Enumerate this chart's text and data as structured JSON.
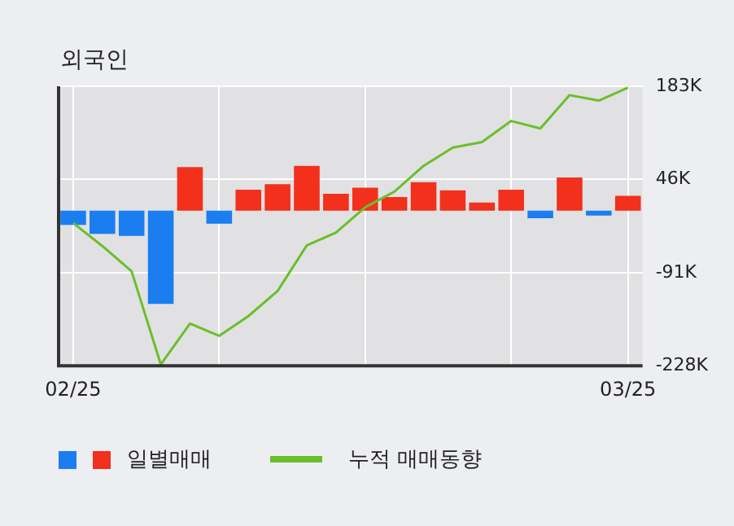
{
  "chart_data": {
    "type": "bar",
    "title": "외국인",
    "categories": [
      "02/25",
      null,
      null,
      null,
      null,
      null,
      null,
      null,
      null,
      null,
      null,
      null,
      null,
      null,
      null,
      null,
      null,
      null,
      null,
      "03/25"
    ],
    "series": [
      {
        "name": "일별매매",
        "colors": [
          "#1a7ef0",
          "#1a7ef0",
          "#1a7ef0",
          "#1a7ef0",
          "#f2301c",
          "#1a7ef0",
          "#f2301c",
          "#f2301c",
          "#f2301c",
          "#f2301c",
          "#f2301c",
          "#f2301c",
          "#f2301c",
          "#f2301c",
          "#f2301c",
          "#f2301c",
          "#1a7ef0",
          "#f2301c",
          "#1a7ef0",
          "#f2301c"
        ],
        "values": [
          -21000,
          -34000,
          -37000,
          -137000,
          64000,
          -19000,
          31000,
          39000,
          66000,
          25000,
          34000,
          20000,
          42000,
          30000,
          12000,
          31000,
          -11000,
          49000,
          -7000,
          22000
        ]
      },
      {
        "name": "누적 매매동향",
        "type": "line",
        "color": "#6abf2a",
        "values": [
          -18000,
          -52000,
          -89000,
          -226000,
          -166000,
          -184000,
          -155000,
          -118000,
          -51000,
          -32000,
          5000,
          28000,
          66000,
          93000,
          101000,
          132000,
          121000,
          170000,
          162000,
          181000
        ]
      }
    ],
    "ylim": [
      -228000,
      183000
    ],
    "yticks": [
      {
        "value": -228000,
        "label": "-228K"
      },
      {
        "value": -91000,
        "label": "-91K"
      },
      {
        "value": 46000,
        "label": "46K"
      },
      {
        "value": 183000,
        "label": "183K"
      }
    ],
    "grid": true,
    "legend": "bottom",
    "marker": "none"
  }
}
